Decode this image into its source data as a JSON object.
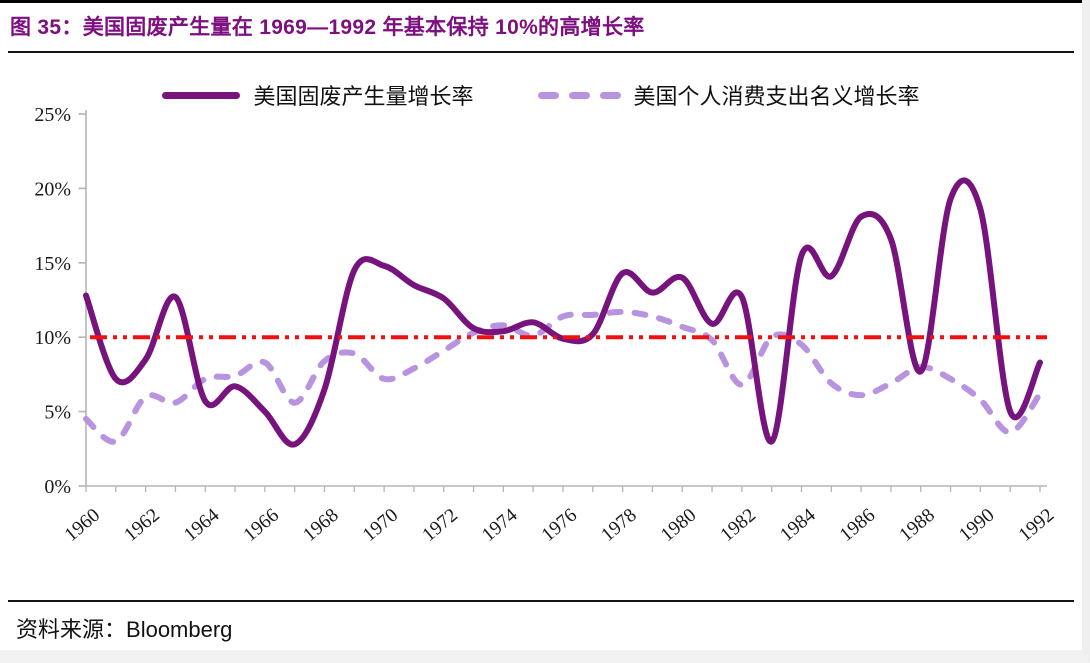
{
  "page": {
    "title": "图 35：美国固废产生量在 1969—1992 年基本保持 10%的高增长率",
    "source_label": "资料来源：",
    "source_value": "Bloomberg"
  },
  "colors": {
    "title": "#7d0f80",
    "solid_line": "#77137d",
    "dashed_line": "#b893e0",
    "reference_line": "#f01010",
    "axis": "#b5b5b5",
    "text": "#1a1a1a"
  },
  "chart_data": {
    "type": "line",
    "title": "图 35：美国固废产生量在 1969—1992 年基本保持 10%的高增长率",
    "x": [
      1960,
      1961,
      1962,
      1963,
      1964,
      1965,
      1966,
      1967,
      1968,
      1969,
      1970,
      1971,
      1972,
      1973,
      1974,
      1975,
      1976,
      1977,
      1978,
      1979,
      1980,
      1981,
      1982,
      1983,
      1984,
      1985,
      1986,
      1987,
      1988,
      1989,
      1990,
      1991,
      1992
    ],
    "x_tick_labels": [
      "1960",
      "1962",
      "1964",
      "1966",
      "1968",
      "1970",
      "1972",
      "1974",
      "1976",
      "1978",
      "1980",
      "1982",
      "1984",
      "1986",
      "1988",
      "1990",
      "1992"
    ],
    "y_ticks": [
      0,
      5,
      10,
      15,
      20,
      25
    ],
    "y_tick_labels": [
      "0%",
      "5%",
      "10%",
      "15%",
      "20%",
      "25%"
    ],
    "ylim": [
      0,
      25
    ],
    "grid": false,
    "legend_position": "top",
    "axis_color": "#b5b5b5",
    "reference_line": {
      "value": 10,
      "style": "dash-dot",
      "color": "#f01010"
    },
    "series": [
      {
        "name": "美国固废产生量增长率",
        "style": "solid",
        "color": "#77137d",
        "values": [
          12.8,
          7.2,
          8.5,
          12.7,
          5.7,
          6.7,
          5.0,
          2.8,
          6.5,
          14.5,
          14.8,
          13.5,
          12.6,
          10.6,
          10.4,
          11.0,
          9.9,
          10.2,
          14.3,
          13.0,
          14.0,
          10.9,
          12.7,
          3.0,
          15.5,
          14.1,
          18.1,
          16.6,
          7.7,
          19.3,
          18.6,
          5.0,
          8.3
        ]
      },
      {
        "name": "美国个人消费支出名义增长率",
        "style": "dashed",
        "color": "#b893e0",
        "values": [
          4.5,
          3.0,
          6.0,
          5.6,
          7.2,
          7.4,
          8.3,
          5.6,
          8.4,
          8.9,
          7.2,
          7.9,
          9.1,
          10.3,
          10.8,
          10.1,
          11.4,
          11.5,
          11.7,
          11.4,
          10.7,
          9.8,
          6.8,
          10.0,
          9.5,
          6.9,
          6.1,
          6.9,
          8.0,
          7.2,
          5.8,
          3.6,
          6.2
        ]
      }
    ]
  }
}
